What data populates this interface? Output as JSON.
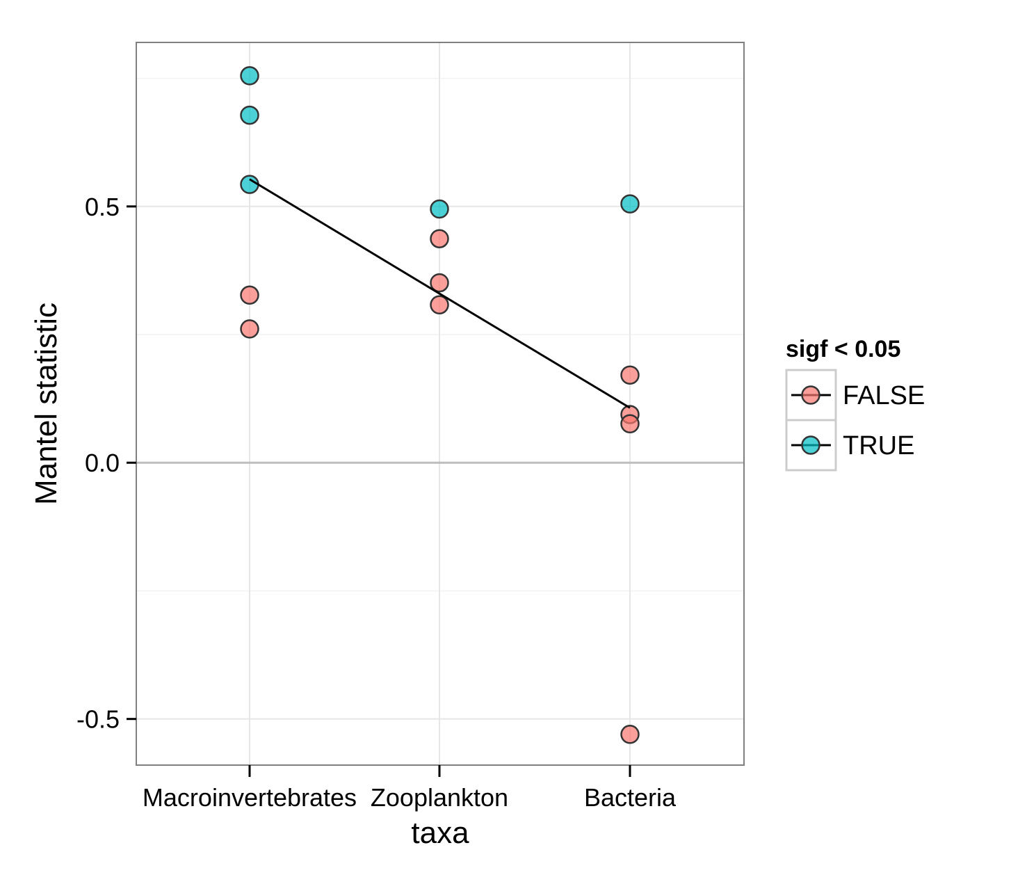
{
  "chart_data": {
    "type": "scatter",
    "xlabel": "taxa",
    "ylabel": "Mantel statistic",
    "categories": [
      "Macroinvertebrates",
      "Zooplankton",
      "Bacteria"
    ],
    "ylim": [
      -0.59,
      0.82
    ],
    "y_ticks": [
      {
        "value": 0.5,
        "label": "0.5"
      },
      {
        "value": 0.0,
        "label": "0.0"
      },
      {
        "value": -0.5,
        "label": "-0.5"
      }
    ],
    "y_minor_ticks": [
      0.75,
      0.25,
      -0.25
    ],
    "grid": true,
    "reference_line_y": 0.0,
    "points": [
      {
        "category": "Macroinvertebrates",
        "y": 0.755,
        "sig": "TRUE"
      },
      {
        "category": "Macroinvertebrates",
        "y": 0.678,
        "sig": "TRUE"
      },
      {
        "category": "Macroinvertebrates",
        "y": 0.543,
        "sig": "TRUE"
      },
      {
        "category": "Macroinvertebrates",
        "y": 0.327,
        "sig": "FALSE"
      },
      {
        "category": "Macroinvertebrates",
        "y": 0.261,
        "sig": "FALSE"
      },
      {
        "category": "Zooplankton",
        "y": 0.495,
        "sig": "TRUE"
      },
      {
        "category": "Zooplankton",
        "y": 0.437,
        "sig": "FALSE"
      },
      {
        "category": "Zooplankton",
        "y": 0.351,
        "sig": "FALSE"
      },
      {
        "category": "Zooplankton",
        "y": 0.308,
        "sig": "FALSE"
      },
      {
        "category": "Bacteria",
        "y": 0.505,
        "sig": "TRUE"
      },
      {
        "category": "Bacteria",
        "y": 0.171,
        "sig": "FALSE"
      },
      {
        "category": "Bacteria",
        "y": 0.094,
        "sig": "FALSE"
      },
      {
        "category": "Bacteria",
        "y": 0.076,
        "sig": "FALSE"
      },
      {
        "category": "Bacteria",
        "y": -0.53,
        "sig": "FALSE"
      }
    ],
    "trend_line": {
      "x": [
        "Macroinvertebrates",
        "Zooplankton",
        "Bacteria"
      ],
      "y": [
        0.553,
        0.33,
        0.107
      ]
    },
    "legend": {
      "title": "sigf < 0.05",
      "placement": "right",
      "entries": [
        {
          "label": "FALSE",
          "color": "#F8766D"
        },
        {
          "label": "TRUE",
          "color": "#00BFC4"
        }
      ]
    },
    "colors": {
      "FALSE": "#F8766D",
      "TRUE": "#00BFC4",
      "point_stroke": "#333333",
      "line": "#000000"
    }
  }
}
